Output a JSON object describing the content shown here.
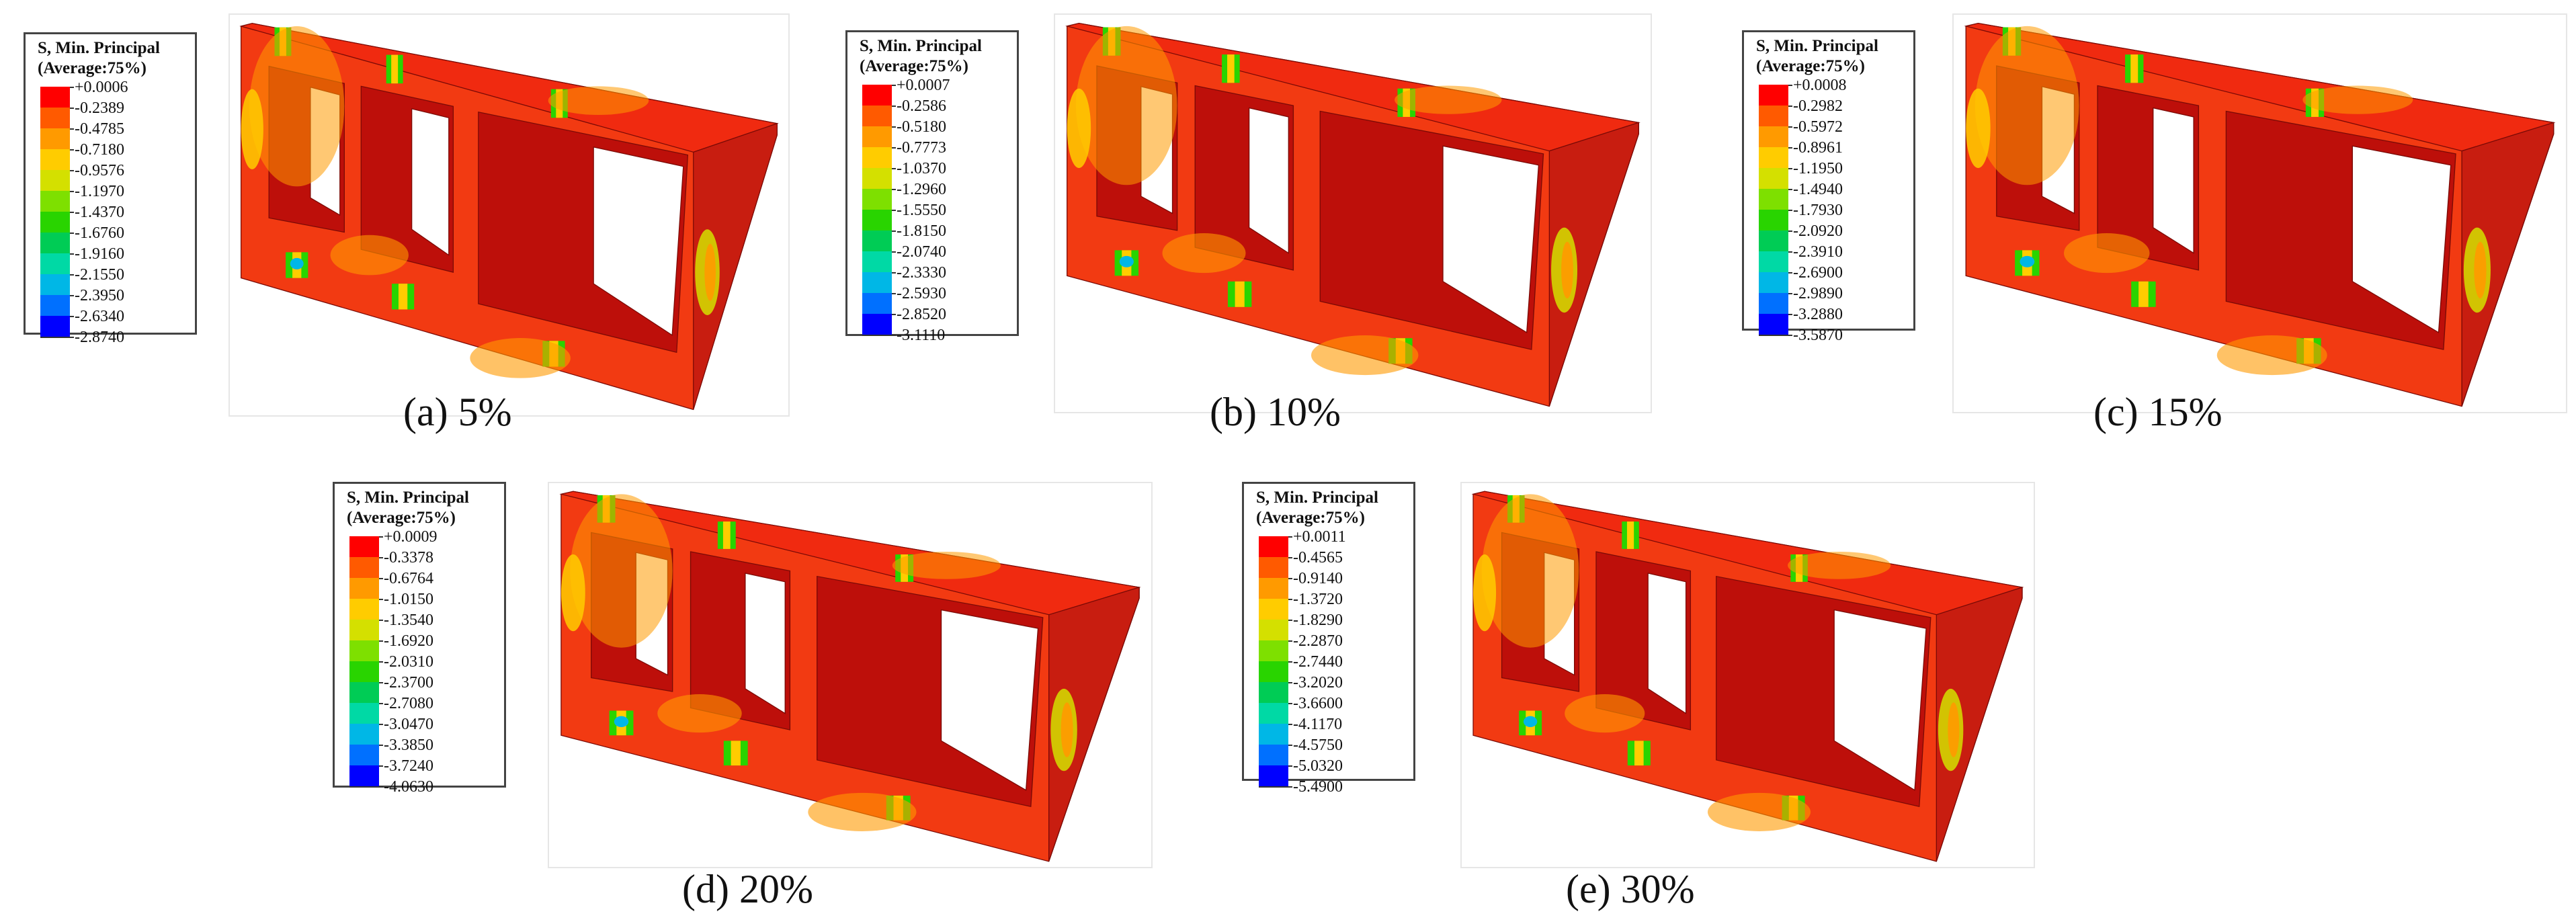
{
  "panels": [
    {
      "caption": "(a) 5%",
      "legend_title_1": "S, Min. Principal",
      "legend_title_2": "(Average:75%)",
      "values": [
        "+0.0006",
        "-0.2389",
        "-0.4785",
        "-0.7180",
        "-0.9576",
        "-1.1970",
        "-1.4370",
        "-1.6760",
        "-1.9160",
        "-2.1550",
        "-2.3950",
        "-2.6340",
        "-2.8740"
      ]
    },
    {
      "caption": "(b) 10%",
      "legend_title_1": "S, Min. Principal",
      "legend_title_2": "(Average:75%)",
      "values": [
        "+0.0007",
        "-0.2586",
        "-0.5180",
        "-0.7773",
        "-1.0370",
        "-1.2960",
        "-1.5550",
        "-1.8150",
        "-2.0740",
        "-2.3330",
        "-2.5930",
        "-2.8520",
        "-3.1110"
      ]
    },
    {
      "caption": "(c) 15%",
      "legend_title_1": "S, Min. Principal",
      "legend_title_2": "(Average:75%)",
      "values": [
        "+0.0008",
        "-0.2982",
        "-0.5972",
        "-0.8961",
        "-1.1950",
        "-1.4940",
        "-1.7930",
        "-2.0920",
        "-2.3910",
        "-2.6900",
        "-2.9890",
        "-3.2880",
        "-3.5870"
      ]
    },
    {
      "caption": "(d) 20%",
      "legend_title_1": "S, Min. Principal",
      "legend_title_2": "(Average:75%)",
      "values": [
        "+0.0009",
        "-0.3378",
        "-0.6764",
        "-1.0150",
        "-1.3540",
        "-1.6920",
        "-2.0310",
        "-2.3700",
        "-2.7080",
        "-3.0470",
        "-3.3850",
        "-3.7240",
        "-4.0630"
      ]
    },
    {
      "caption": "(e) 30%",
      "legend_title_1": "S, Min. Principal",
      "legend_title_2": "(Average:75%)",
      "values": [
        "+0.0011",
        "-0.4565",
        "-0.9140",
        "-1.3720",
        "-1.8290",
        "-2.2870",
        "-2.7440",
        "-3.2020",
        "-3.6600",
        "-4.1170",
        "-4.5750",
        "-5.0320",
        "-5.4900"
      ]
    }
  ],
  "colors": {
    "contour_scale": [
      "#ff0000",
      "#ff5a00",
      "#ff9a00",
      "#ffcc00",
      "#d4e000",
      "#7ee000",
      "#29d400",
      "#00cc55",
      "#00d9a5",
      "#00b7e6",
      "#0070ff",
      "#0000ff"
    ],
    "beam_top": "#f02a10",
    "beam_front": "#f23a12",
    "beam_inner": "#bd0f0a",
    "beam_side": "#c81d10"
  }
}
